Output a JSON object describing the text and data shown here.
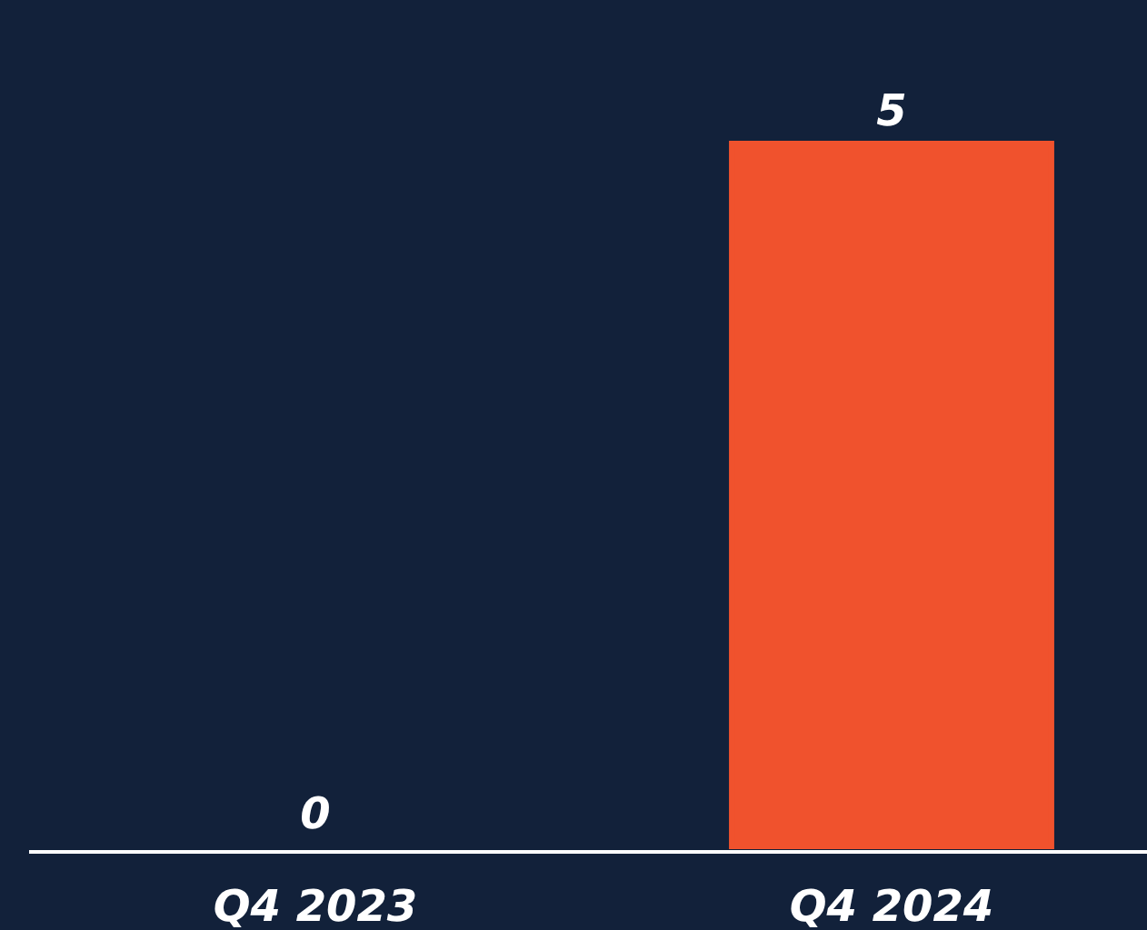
{
  "chart_data": {
    "type": "bar",
    "categories": [
      "Q4 2023",
      "Q4 2024"
    ],
    "values": [
      0,
      5
    ],
    "color": "#f0522d",
    "data_labels": true
  }
}
